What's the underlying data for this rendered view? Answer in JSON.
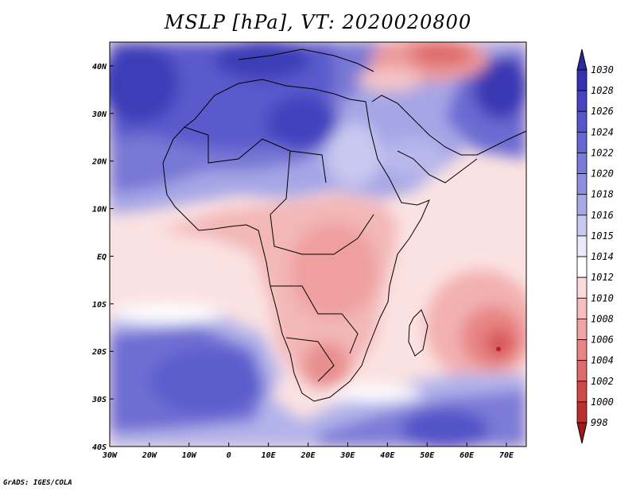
{
  "title": "MSLP [hPa], VT: 2020020800",
  "footer": "GrADS: IGES/COLA",
  "map": {
    "lon_range": [
      -30,
      75
    ],
    "lat_range": [
      -40,
      45
    ],
    "lon_ticks": [
      "30W",
      "20W",
      "10W",
      "0",
      "10E",
      "20E",
      "30E",
      "40E",
      "50E",
      "60E",
      "70E"
    ],
    "lat_ticks": [
      "40N",
      "30N",
      "20N",
      "10N",
      "EQ",
      "10S",
      "20S",
      "30S",
      "40S"
    ],
    "low_center": {
      "lon": 68,
      "lat": -19.5,
      "value": 1003
    },
    "high_regions": [
      "North Africa / Sahara",
      "Central Asia",
      "South Atlantic",
      "Southern Indian Ocean"
    ],
    "low_regions": [
      "Central Africa",
      "Southern Africa",
      "Middle East",
      "Indian Ocean (70E, 20S)"
    ]
  },
  "colorbar": {
    "levels": [
      "1030",
      "1028",
      "1026",
      "1024",
      "1022",
      "1020",
      "1018",
      "1016",
      "1015",
      "1014",
      "1012",
      "1010",
      "1008",
      "1006",
      "1004",
      "1002",
      "1000",
      "998"
    ],
    "colors": [
      "#2c2a9a",
      "#3533b2",
      "#4545c4",
      "#5656cc",
      "#6767d4",
      "#7a7ad9",
      "#8e8ee0",
      "#a8a8e8",
      "#c8c8f0",
      "#eaeafa",
      "#ffffff",
      "#fadada",
      "#f5bfbf",
      "#eea4a4",
      "#e68787",
      "#de6b6b",
      "#d04848",
      "#bd2e2e",
      "#a01818"
    ]
  }
}
